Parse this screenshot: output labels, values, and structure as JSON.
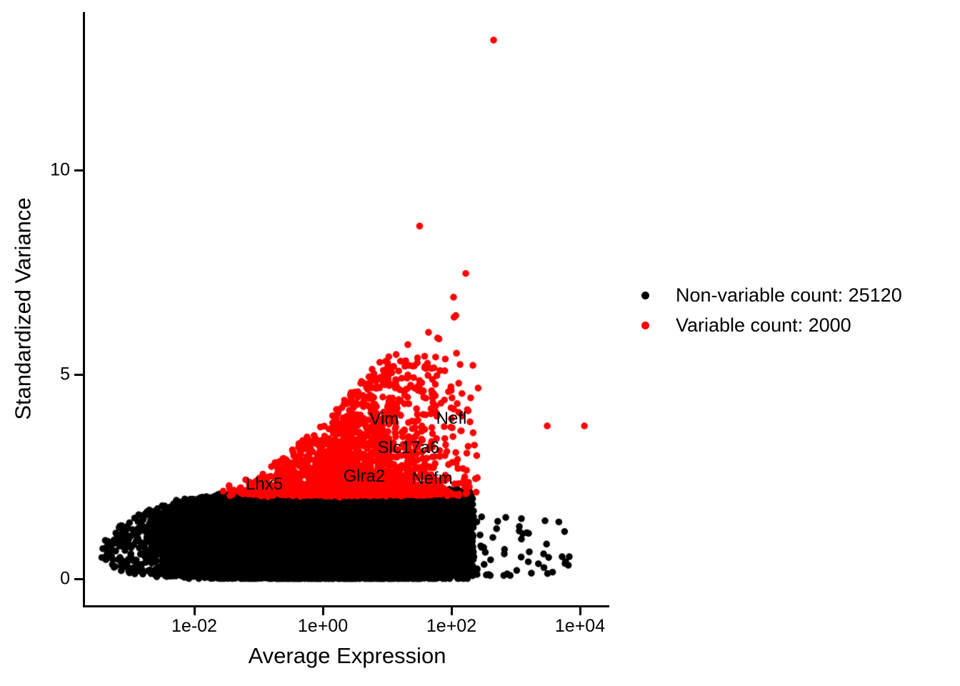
{
  "figure": {
    "background": "#FFFFFF"
  },
  "chart_data": {
    "type": "scatter",
    "title": "",
    "xlabel": "Average Expression",
    "ylabel": "Standardized Variance",
    "x_scale": "log10",
    "grid": "off",
    "x_ticks": [
      {
        "label": "1e-02",
        "value": 0.01
      },
      {
        "label": "1e+00",
        "value": 1
      },
      {
        "label": "1e+02",
        "value": 100
      },
      {
        "label": "1e+04",
        "value": 10000
      }
    ],
    "y_ticks": [
      {
        "label": "0",
        "value": 0
      },
      {
        "label": "5",
        "value": 5
      },
      {
        "label": "10",
        "value": 10
      }
    ],
    "x_range_log10": [
      -3.74,
      4.47
    ],
    "y_range": [
      -0.66,
      13.87
    ],
    "legend": {
      "position": "right",
      "entries": [
        {
          "label": "Non-variable count: 25120",
          "color": "#000000",
          "count": 25120
        },
        {
          "label": "Variable count: 2000",
          "color": "#FF0000",
          "count": 2000
        }
      ]
    },
    "labeled_genes": [
      {
        "name": "Vim",
        "x": 9.0,
        "y": 3.9
      },
      {
        "name": "Nefl",
        "x": 100,
        "y": 3.92
      },
      {
        "name": "Slc17a6",
        "x": 21.5,
        "y": 3.2
      },
      {
        "name": "Glra2",
        "x": 4.4,
        "y": 2.5
      },
      {
        "name": "Nefm",
        "x": 50,
        "y": 2.45
      },
      {
        "name": "Lhx5",
        "x": 0.123,
        "y": 2.31
      }
    ],
    "series": [
      {
        "name": "Non-variable",
        "color": "#000000",
        "count": 25120,
        "cloud": {
          "count": 25053,
          "seed": 42,
          "lx_mean": 0.0,
          "lx_sd": 1.08,
          "lx_min": -3.45,
          "lx_max": 2.35,
          "ref_lx": -3.35,
          "ymax_base": 2.18,
          "ymax_drop": 1.1,
          "ymax_tau": 0.8,
          "ymin_amp": 0.32,
          "ymin_tau": 0.55,
          "jitter": 0.03
        },
        "sparse_tail": {
          "count": 60,
          "lx_min": 2.25,
          "lx_max": 3.9,
          "lx_pow": 2.2,
          "y_min": 0.08,
          "y_amp": 1.45,
          "y_pow": 1.8
        },
        "outliers": [
          [
            2858,
            1.42
          ],
          [
            1627,
            0.66
          ],
          [
            5270,
            0.54
          ],
          [
            6810,
            0.54
          ],
          [
            1138,
            1.28
          ],
          [
            664,
            0.61
          ],
          [
            441,
            1.01
          ]
        ]
      },
      {
        "name": "Variable",
        "color": "#FF0000",
        "count": 2000,
        "cloud": {
          "count": 1964,
          "seed": 7,
          "lx_mean": 0.5,
          "lx_sd": 0.78,
          "lx_min": -1.58,
          "lx_max": 2.42,
          "y_base": 2.06,
          "ymax_base": 2.28,
          "ymax_amp": 0.75,
          "ymax_pow": 1.55,
          "ymax_cap": 5.45,
          "y_pow": 2.4,
          "jitter": 0.02
        },
        "outliers": [
          [
            453,
            13.18
          ],
          [
            32,
            8.63
          ],
          [
            167,
            7.47
          ],
          [
            108,
            6.89
          ],
          [
            117,
            6.44
          ],
          [
            120,
            5.52
          ],
          [
            44,
            6.03
          ],
          [
            61,
            5.89
          ],
          [
            64,
            5.87
          ],
          [
            21,
            5.73
          ],
          [
            22,
            5.22
          ],
          [
            26.5,
            5.21
          ],
          [
            20.5,
            4.91
          ],
          [
            79,
            5.09
          ],
          [
            3090,
            3.74
          ],
          [
            11700,
            3.74
          ],
          [
            182,
            4.11
          ],
          [
            140,
            3.62
          ],
          [
            228,
            3.27
          ],
          [
            117,
            3.09
          ],
          [
            103,
            2.85
          ],
          [
            237,
            2.45
          ],
          [
            129,
            2.33
          ],
          [
            34,
            4.58
          ],
          [
            40,
            4.42
          ],
          [
            90,
            4.58
          ],
          [
            56,
            4.48
          ],
          [
            57,
            4.23
          ],
          [
            177,
            4.14
          ],
          [
            110,
            6.4
          ]
        ]
      }
    ]
  }
}
